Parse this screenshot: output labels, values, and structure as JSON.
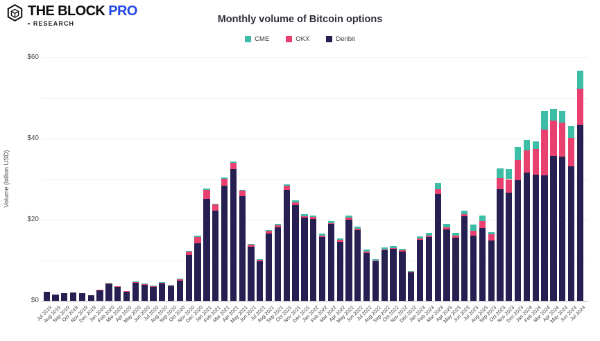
{
  "header": {
    "logo": {
      "brand": "THE BLOCK",
      "pro": "PRO",
      "research": "• RESEARCH"
    },
    "title": "Monthly volume of Bitcoin options"
  },
  "chart_data": {
    "type": "bar",
    "stacked": true,
    "title": "Monthly volume of Bitcoin options",
    "xlabel": "",
    "ylabel": "Volume (billion USD)",
    "ylim": [
      0,
      60
    ],
    "yticks": [
      {
        "value": 0,
        "label": "$0"
      },
      {
        "value": 20,
        "label": "$20"
      },
      {
        "value": 40,
        "label": "$40"
      },
      {
        "value": 60,
        "label": "$60"
      }
    ],
    "gridline_step": 10,
    "grid": true,
    "legend_position": "top-center",
    "legend_order": [
      "CME",
      "OKX",
      "Deribit"
    ],
    "stack_order_bottom_to_top": [
      "Deribit",
      "OKX",
      "CME"
    ],
    "categories": [
      "Jul 2019",
      "Aug 2019",
      "Sep 2019",
      "Oct 2019",
      "Nov 2019",
      "Dec 2019",
      "Jan 2020",
      "Feb 2020",
      "Mar 2020",
      "Apr 2020",
      "May 2020",
      "Jun 2020",
      "Jul 2020",
      "Aug 2020",
      "Sep 2020",
      "Oct 2020",
      "Nov 2020",
      "Dec 2020",
      "Jan 2021",
      "Feb 2021",
      "Mar 2021",
      "Apr 2021",
      "May 2021",
      "Jun 2021",
      "Jul 2021",
      "Aug 2021",
      "Sep 2021",
      "Oct 2021",
      "Nov 2021",
      "Dec 2021",
      "Jan 2022",
      "Feb 2022",
      "Mar 2022",
      "Apr 2022",
      "May 2022",
      "Jun 2022",
      "Jul 2022",
      "Aug 2022",
      "Sep 2022",
      "Oct 2022",
      "Nov 2022",
      "Dec 2022",
      "Jan 2023",
      "Feb 2023",
      "Mar 2023",
      "Apr 2023",
      "May 2023",
      "Jun 2023",
      "Jul 2023",
      "Aug 2023",
      "Sep 2023",
      "Oct 2023",
      "Nov 2023",
      "Dec 2023",
      "Jan 2024",
      "Feb 2024",
      "Mar 2024",
      "Apr 2024",
      "May 2024",
      "Jun 2024",
      "Jul 2024"
    ],
    "series": [
      {
        "name": "CME",
        "color": "#3dbca6",
        "values": [
          0,
          0,
          0,
          0,
          0,
          0,
          0,
          0.1,
          0,
          0,
          0.1,
          0.2,
          0.1,
          0.1,
          0.2,
          0.2,
          0.1,
          0.3,
          0.4,
          0.3,
          0.3,
          0.3,
          0.3,
          0.2,
          0.1,
          0.3,
          0.4,
          0.5,
          0.5,
          0.5,
          0.5,
          0.5,
          0.5,
          0.3,
          0.5,
          0.5,
          0.4,
          0.4,
          0.5,
          0.5,
          0.5,
          0.3,
          0.6,
          0.7,
          1.6,
          0.8,
          0.7,
          0.9,
          1.5,
          1.5,
          0.6,
          2.5,
          2.4,
          3.2,
          2.5,
          1.9,
          4.6,
          3.0,
          3.0,
          2.8,
          4.5
        ]
      },
      {
        "name": "OKX",
        "color": "#e8416f",
        "values": [
          0,
          0,
          0,
          0,
          0,
          0,
          0.1,
          0.2,
          0.2,
          0.1,
          0.3,
          0.1,
          0.2,
          0.3,
          0.1,
          0.3,
          1.0,
          1.5,
          2.2,
          1.4,
          1.7,
          1.6,
          1.3,
          0.5,
          0.4,
          0.6,
          0.5,
          1.0,
          0.7,
          0.4,
          0.4,
          0.3,
          0.3,
          0.4,
          0.5,
          0.3,
          0.4,
          0.2,
          0.2,
          0.2,
          0.2,
          0.1,
          0.2,
          0.4,
          1.2,
          0.6,
          0.5,
          0.6,
          1.2,
          1.6,
          1.6,
          2.6,
          3.3,
          5.0,
          5.4,
          6.3,
          11.3,
          8.6,
          8.4,
          7.0,
          8.8
        ]
      },
      {
        "name": "Deribit",
        "color": "#262052",
        "values": [
          2.2,
          1.5,
          1.9,
          2.0,
          1.9,
          1.4,
          2.7,
          4.1,
          3.4,
          2.3,
          4.4,
          4.0,
          3.5,
          4.2,
          3.7,
          5.0,
          11.2,
          14.2,
          25.1,
          22.3,
          28.4,
          32.5,
          25.8,
          13.3,
          9.8,
          16.6,
          18.1,
          27.3,
          23.6,
          20.5,
          20.2,
          15.8,
          18.9,
          14.6,
          20.0,
          17.5,
          11.8,
          9.7,
          12.4,
          12.8,
          12.2,
          7.0,
          15.1,
          15.7,
          26.3,
          17.6,
          15.5,
          20.8,
          16.1,
          18.0,
          14.8,
          27.6,
          26.7,
          29.7,
          31.7,
          31.1,
          31.0,
          35.8,
          35.5,
          33.2,
          43.5
        ]
      }
    ]
  }
}
